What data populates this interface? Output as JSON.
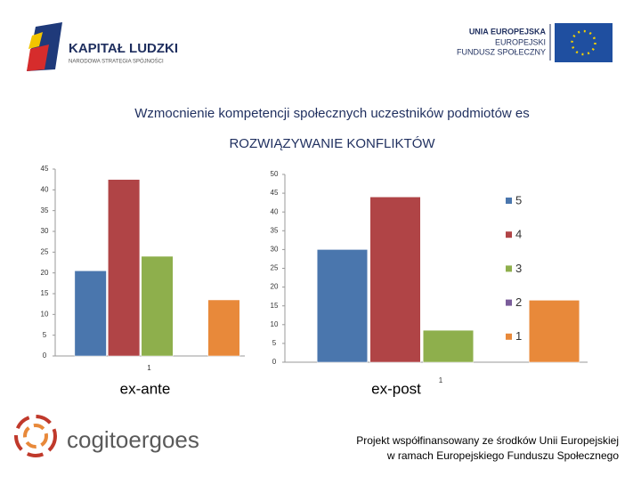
{
  "header": {
    "left_logo_title": "KAPITAŁ LUDZKI",
    "left_logo_subtitle": "NARODOWA STRATEGIA SPÓJNOŚCI",
    "right_logo_line1": "UNIA EUROPEJSKA",
    "right_logo_line2": "EUROPEJSKI",
    "right_logo_line3": "FUNDUSZ SPOŁECZNY"
  },
  "title": "Wzmocnienie kompetencji społecznych uczestników podmiotów es",
  "subtitle": "ROZWIĄZYWANIE KONFLIKTÓW",
  "chart_data": [
    {
      "type": "bar",
      "xlabel": "ex-ante",
      "categories": [
        "1"
      ],
      "ylim": [
        0,
        45
      ],
      "yticks": [
        0,
        5,
        10,
        15,
        20,
        25,
        30,
        35,
        40,
        45
      ],
      "legend": false,
      "series": [
        {
          "name": "5",
          "color": "#4a76ad",
          "values": [
            20.5
          ]
        },
        {
          "name": "4",
          "color": "#b04446",
          "values": [
            42.5
          ]
        },
        {
          "name": "3",
          "color": "#8eaf4c",
          "values": [
            24
          ]
        },
        {
          "name": "2",
          "color": "#7a5c9a",
          "values": [
            0
          ]
        },
        {
          "name": "1",
          "color": "#e8893a",
          "values": [
            13.5
          ]
        }
      ]
    },
    {
      "type": "bar",
      "xlabel": "ex-post",
      "categories": [
        "1"
      ],
      "ylim": [
        0,
        50
      ],
      "yticks": [
        0,
        5,
        10,
        15,
        20,
        25,
        30,
        35,
        40,
        45,
        50
      ],
      "legend": true,
      "series": [
        {
          "name": "5",
          "color": "#4a76ad",
          "values": [
            30
          ]
        },
        {
          "name": "4",
          "color": "#b04446",
          "values": [
            44
          ]
        },
        {
          "name": "3",
          "color": "#8eaf4c",
          "values": [
            8.5
          ]
        },
        {
          "name": "2",
          "color": "#7a5c9a",
          "values": [
            0
          ]
        },
        {
          "name": "1",
          "color": "#e8893a",
          "values": [
            16.5
          ]
        }
      ]
    }
  ],
  "footer": {
    "logo": "cogitoergoes",
    "line1": "Projekt  współfinansowany ze środków Unii Europejskiej",
    "line2": "w ramach Europejskiego Funduszu Społecznego"
  }
}
